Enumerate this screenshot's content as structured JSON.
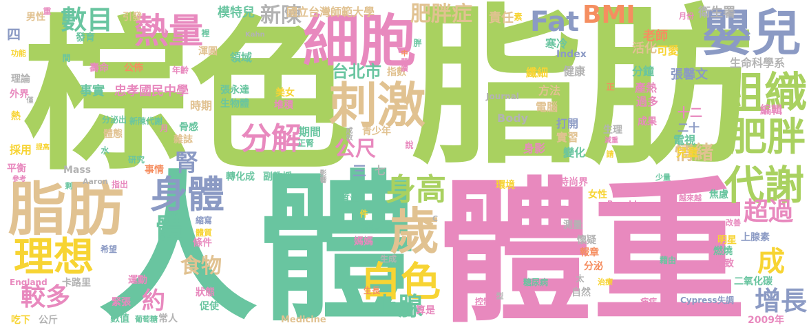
{
  "palette": {
    "green": "#a9d160",
    "teal": "#69c5a0",
    "pink": "#e889be",
    "tan": "#e1c291",
    "yellow": "#f7d433",
    "orange": "#f58e60",
    "slate": "#8b9ac4",
    "gray": "#b3b3b3"
  },
  "words": [
    {
      "text": "脂肪",
      "color": "green"
    },
    {
      "text": "棕色",
      "color": "green"
    },
    {
      "text": "體重",
      "color": "pink"
    },
    {
      "text": "人體",
      "color": "teal"
    },
    {
      "text": "脂肪",
      "color": "tan"
    },
    {
      "text": "細胞",
      "color": "pink"
    },
    {
      "text": "嬰兒",
      "color": "slate"
    },
    {
      "text": "熱量",
      "color": "pink"
    },
    {
      "text": "數目",
      "color": "teal"
    },
    {
      "text": "刺激",
      "color": "tan"
    },
    {
      "text": "組織",
      "color": "green"
    },
    {
      "text": "肥胖",
      "color": "green"
    },
    {
      "text": "代謝",
      "color": "green"
    },
    {
      "text": "理想",
      "color": "yellow"
    },
    {
      "text": "身體",
      "color": "slate"
    },
    {
      "text": "歲",
      "color": "tan"
    },
    {
      "text": "白色",
      "color": "yellow"
    },
    {
      "text": "身高",
      "color": "green"
    },
    {
      "text": "BMI",
      "color": "orange"
    },
    {
      "text": "Fat",
      "color": "slate"
    },
    {
      "text": "分解",
      "color": "pink"
    },
    {
      "text": "新陳",
      "color": "gray"
    },
    {
      "text": "肥胖症",
      "color": "tan"
    },
    {
      "text": "超過",
      "color": "pink"
    },
    {
      "text": "成",
      "color": "yellow"
    },
    {
      "text": "增長",
      "color": "slate"
    },
    {
      "text": "上腺",
      "color": "teal"
    },
    {
      "text": "較多",
      "color": "pink"
    },
    {
      "text": "約",
      "color": "pink"
    },
    {
      "text": "公尺",
      "color": "pink"
    },
    {
      "text": "情緒",
      "color": "tan"
    },
    {
      "text": "腎",
      "color": "slate"
    },
    {
      "text": "體",
      "color": "teal"
    },
    {
      "text": "食物",
      "color": "tan"
    },
    {
      "text": "台北市",
      "color": "teal"
    },
    {
      "text": "國立台灣師範大學",
      "color": "tan"
    },
    {
      "text": "模特兒",
      "color": "teal"
    },
    {
      "text": "衛生署",
      "color": "gray"
    },
    {
      "text": "責任",
      "color": "tan"
    },
    {
      "text": "寒冷",
      "color": "teal"
    },
    {
      "text": "活化",
      "color": "tan"
    },
    {
      "text": "老師",
      "color": "orange"
    },
    {
      "text": "可愛",
      "color": "yellow"
    },
    {
      "text": "生命科學系",
      "color": "gray"
    },
    {
      "text": "張馨文",
      "color": "slate"
    },
    {
      "text": "分鐘",
      "color": "teal"
    },
    {
      "text": "產熱",
      "color": "pink"
    },
    {
      "text": "過多",
      "color": "pink"
    },
    {
      "text": "編輯",
      "color": "pink"
    },
    {
      "text": "十二",
      "color": "pink"
    },
    {
      "text": "二十",
      "color": "slate"
    },
    {
      "text": "成果",
      "color": "pink"
    },
    {
      "text": "生理",
      "color": "gray"
    },
    {
      "text": "電視",
      "color": "teal"
    },
    {
      "text": "兒童",
      "color": "yellow"
    },
    {
      "text": "健康",
      "color": "gray"
    },
    {
      "text": "纖細",
      "color": "yellow"
    },
    {
      "text": "方法",
      "color": "tan"
    },
    {
      "text": "電腦",
      "color": "tan"
    },
    {
      "text": "打開",
      "color": "slate"
    },
    {
      "text": "實習",
      "color": "tan"
    },
    {
      "text": "身影",
      "color": "pink"
    },
    {
      "text": "變化",
      "color": "teal"
    },
    {
      "text": "Index",
      "color": "slate"
    },
    {
      "text": "Journal",
      "color": "gray"
    },
    {
      "text": "Body",
      "color": "gray"
    },
    {
      "text": "指數",
      "color": "tan"
    },
    {
      "text": "領域",
      "color": "teal"
    },
    {
      "text": "渾圓",
      "color": "tan"
    },
    {
      "text": "壽命",
      "color": "pink"
    },
    {
      "text": "公佈",
      "color": "orange"
    },
    {
      "text": "年齡",
      "color": "pink"
    },
    {
      "text": "事實",
      "color": "teal"
    },
    {
      "text": "忠孝國民中學",
      "color": "pink"
    },
    {
      "text": "張永達",
      "color": "teal"
    },
    {
      "text": "生物體",
      "color": "teal"
    },
    {
      "text": "美女",
      "color": "yellow"
    },
    {
      "text": "堆積",
      "color": "pink"
    },
    {
      "text": "時期",
      "color": "tan"
    },
    {
      "text": "分泌出",
      "color": "teal"
    },
    {
      "text": "新陳代謝",
      "color": "teal"
    },
    {
      "text": "骨感",
      "color": "teal"
    },
    {
      "text": "雜誌",
      "color": "tan"
    },
    {
      "text": "期間",
      "color": "teal"
    },
    {
      "text": "青少年",
      "color": "tan"
    },
    {
      "text": "理論",
      "color": "gray"
    },
    {
      "text": "外界",
      "color": "pink"
    },
    {
      "text": "熱",
      "color": "yellow"
    },
    {
      "text": "體態",
      "color": "tan"
    },
    {
      "text": "採用",
      "color": "yellow"
    },
    {
      "text": "平衡",
      "color": "pink"
    },
    {
      "text": "事情",
      "color": "orange"
    },
    {
      "text": "Mass",
      "color": "gray"
    },
    {
      "text": "研究",
      "color": "teal"
    },
    {
      "text": "轉化成",
      "color": "teal"
    },
    {
      "text": "副教授",
      "color": "teal"
    },
    {
      "text": "時尚界",
      "color": "pink"
    },
    {
      "text": "女性",
      "color": "yellow"
    },
    {
      "text": "環境",
      "color": "yellow"
    },
    {
      "text": "焦慮",
      "color": "teal"
    },
    {
      "text": "質量",
      "color": "teal"
    },
    {
      "text": "持續",
      "color": "teal"
    },
    {
      "text": "媽媽",
      "color": "pink"
    },
    {
      "text": "縮寫",
      "color": "slate"
    },
    {
      "text": "體質",
      "color": "yellow"
    },
    {
      "text": "條件",
      "color": "pink"
    },
    {
      "text": "測量",
      "color": "gray"
    },
    {
      "text": "懷疑",
      "color": "gray"
    },
    {
      "text": "明星",
      "color": "yellow"
    },
    {
      "text": "燃燒",
      "color": "teal"
    },
    {
      "text": "不致",
      "color": "pink"
    },
    {
      "text": "上腺素",
      "color": "slate"
    },
    {
      "text": "報章",
      "color": "orange"
    },
    {
      "text": "分泌",
      "color": "orange"
    },
    {
      "text": "生成",
      "color": "gray"
    },
    {
      "text": "卡路里",
      "color": "gray"
    },
    {
      "text": "運動",
      "color": "pink"
    },
    {
      "text": "狀態",
      "color": "pink"
    },
    {
      "text": "緊張",
      "color": "pink"
    },
    {
      "text": "促使",
      "color": "teal"
    },
    {
      "text": "數值",
      "color": "teal"
    },
    {
      "text": "常人",
      "color": "gray"
    },
    {
      "text": "自然",
      "color": "gray"
    },
    {
      "text": "二氧化碳",
      "color": "teal"
    },
    {
      "text": "2009年",
      "color": "pink"
    },
    {
      "text": "吃下",
      "color": "yellow"
    },
    {
      "text": "公斤",
      "color": "gray"
    },
    {
      "text": "葡萄糖",
      "color": "teal"
    },
    {
      "text": "Medicine",
      "color": "tan"
    },
    {
      "text": "糖尿病",
      "color": "teal"
    },
    {
      "text": "算是",
      "color": "pink"
    },
    {
      "text": "生長",
      "color": "orange"
    },
    {
      "text": "控制",
      "color": "pink"
    },
    {
      "text": "病症",
      "color": "pink"
    },
    {
      "text": "Cypress",
      "color": "slate"
    },
    {
      "text": "失調",
      "color": "slate"
    },
    {
      "text": "England",
      "color": "pink"
    },
    {
      "text": "希望",
      "color": "slate"
    },
    {
      "text": "發育",
      "color": "teal"
    },
    {
      "text": "引發",
      "color": "tan"
    },
    {
      "text": "男性",
      "color": "tan"
    },
    {
      "text": "功能",
      "color": "yellow"
    },
    {
      "text": "四",
      "color": "slate"
    },
    {
      "text": "三",
      "color": "slate"
    },
    {
      "text": "七",
      "color": "gray"
    },
    {
      "text": "Aaron",
      "color": "gray"
    },
    {
      "text": "Ronald",
      "color": "pink"
    },
    {
      "text": "越來越",
      "color": "pink"
    },
    {
      "text": "少量",
      "color": "teal"
    },
    {
      "text": "改善",
      "color": "pink"
    },
    {
      "text": "藉由",
      "color": "teal"
    },
    {
      "text": "治療",
      "color": "yellow"
    },
    {
      "text": "Kahn",
      "color": "gray"
    },
    {
      "text": "月份",
      "color": "pink"
    },
    {
      "text": "提高",
      "color": "yellow"
    },
    {
      "text": "參考",
      "color": "pink"
    },
    {
      "text": "指出",
      "color": "pink"
    },
    {
      "text": "減重",
      "color": "pink"
    },
    {
      "text": "正腎",
      "color": "teal"
    },
    {
      "text": "重",
      "color": "pink"
    },
    {
      "text": "素",
      "color": "yellow"
    },
    {
      "text": "裡",
      "color": "teal"
    },
    {
      "text": "間",
      "color": "teal"
    },
    {
      "text": "件",
      "color": "yellow"
    },
    {
      "text": "肥",
      "color": "pink"
    },
    {
      "text": "月",
      "color": "pink"
    },
    {
      "text": "水",
      "color": "teal"
    },
    {
      "text": "剩",
      "color": "teal"
    },
    {
      "text": "太",
      "color": "gray"
    },
    {
      "text": "型",
      "color": "gray"
    },
    {
      "text": "請",
      "color": "yellow"
    },
    {
      "text": "說",
      "color": "pink"
    },
    {
      "text": "正",
      "color": "orange"
    },
    {
      "text": "胖",
      "color": "teal"
    },
    {
      "text": "中",
      "color": "orange"
    },
    {
      "text": "閱讀",
      "color": "pink"
    },
    {
      "text": "成效",
      "color": "gray"
    },
    {
      "text": "影響",
      "color": "gray"
    },
    {
      "text": "C",
      "color": "gray"
    },
    {
      "text": "僅",
      "color": "gray"
    }
  ]
}
